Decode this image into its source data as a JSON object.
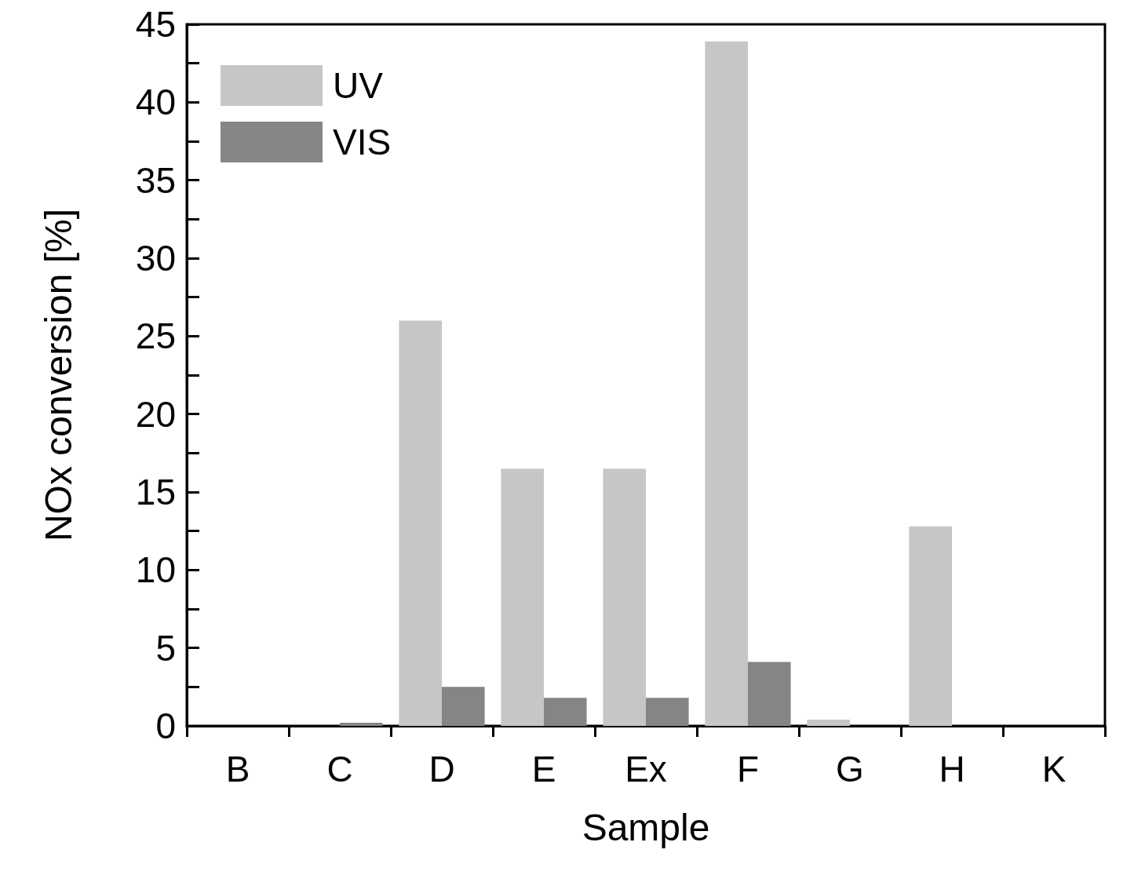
{
  "chart_data": {
    "type": "bar",
    "xlabel": "Sample",
    "ylabel": "NOx conversion [%]",
    "categories": [
      "B",
      "C",
      "D",
      "E",
      "Ex",
      "F",
      "G",
      "H",
      "K"
    ],
    "series": [
      {
        "name": "UV",
        "color": "#c6c6c6",
        "values": [
          null,
          null,
          26,
          16.5,
          16.5,
          43.9,
          0.4,
          12.8,
          null
        ]
      },
      {
        "name": "VIS",
        "color": "#858585",
        "values": [
          null,
          0.2,
          2.5,
          1.8,
          1.8,
          4.1,
          null,
          null,
          null
        ]
      }
    ],
    "ylim": [
      0,
      45
    ],
    "yticks": [
      0,
      5,
      10,
      15,
      20,
      25,
      30,
      35,
      40,
      45
    ],
    "grid": false,
    "legend": "top left"
  }
}
